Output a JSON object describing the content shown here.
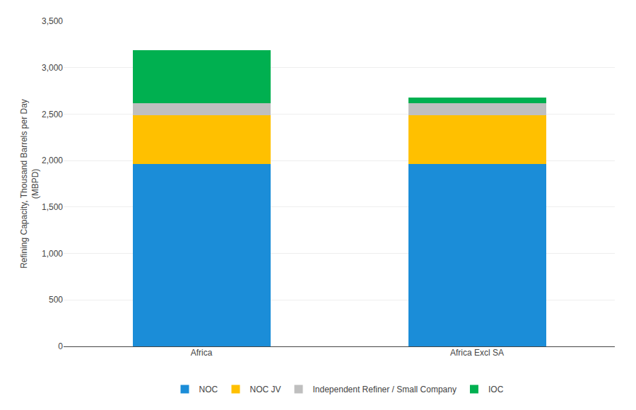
{
  "chart_data": {
    "type": "bar",
    "stacked": true,
    "categories": [
      "Africa",
      "Africa Excl SA"
    ],
    "series": [
      {
        "name": "NOC",
        "color": "#1B8DD8",
        "values": [
          1960,
          1960
        ]
      },
      {
        "name": "NOC JV",
        "color": "#FFC000",
        "values": [
          530,
          530
        ]
      },
      {
        "name": "Independent Refiner / Small Company",
        "color": "#BFBFBF",
        "values": [
          130,
          130
        ]
      },
      {
        "name": "IOC",
        "color": "#00B050",
        "values": [
          570,
          60
        ]
      }
    ],
    "ylabel": "Refining Capacity, Thousand Barrels per Day\n(MBPD)",
    "ylim": [
      0,
      3500
    ],
    "yticks": [
      0,
      500,
      {
        "value": 1000,
        "label": "1,000"
      },
      {
        "value": 1500,
        "label": "1,500"
      },
      {
        "value": 2000,
        "label": "2,000"
      },
      {
        "value": 2500,
        "label": "2,500"
      },
      {
        "value": 3000,
        "label": "3,000"
      },
      {
        "value": 3500,
        "label": "3,500"
      }
    ],
    "grid": true,
    "legend": "bottom"
  }
}
